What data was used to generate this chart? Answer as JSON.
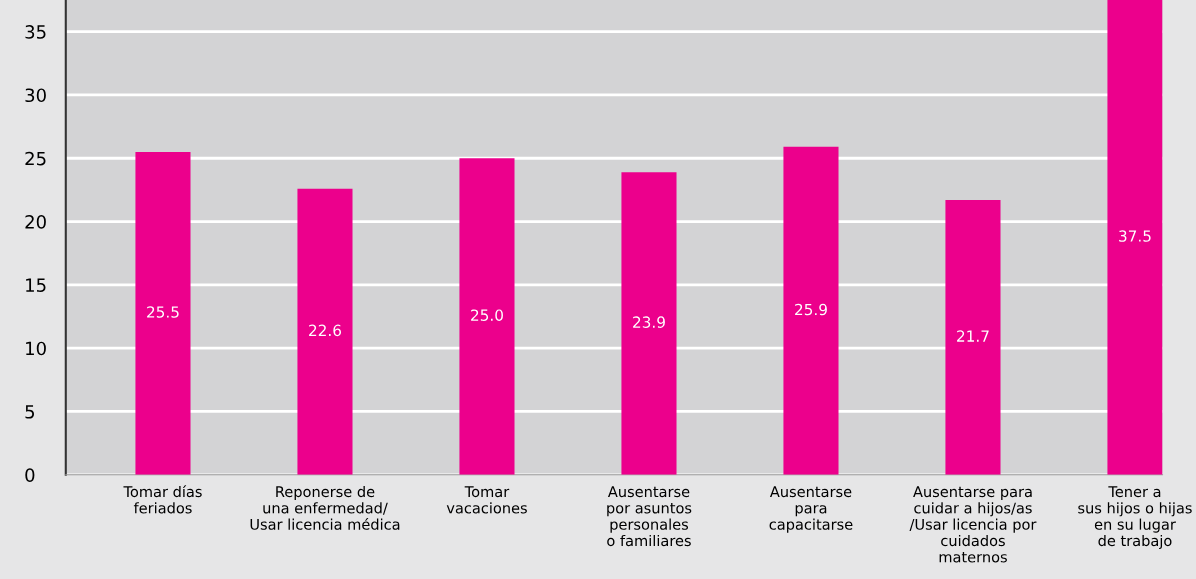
{
  "chart_data": {
    "type": "bar",
    "categories": [
      "Tomar días\nferiados",
      "Reponerse de\nuna enfermedad/\nUsar licencia médica",
      "Tomar\nvacaciones",
      "Ausentarse\npor asuntos\npersonales\no familiares",
      "Ausentarse\npara\ncapacitarse",
      "Ausentarse para\ncuidar a hijos/as\n/Usar licencia por\ncuidados\nmaternos",
      "Tener a\nsus hijos o hijas\nen su lugar\nde trabajo"
    ],
    "values": [
      25.5,
      22.6,
      25.0,
      23.9,
      25.9,
      21.7,
      37.5
    ],
    "value_labels": [
      "25.5",
      "22.6",
      "25.0",
      "23.9",
      "25.9",
      "21.7",
      "37.5"
    ],
    "color": "#ec008c",
    "ylim": [
      0,
      37.5
    ],
    "yticks": [
      0,
      5,
      10,
      15,
      20,
      25,
      30,
      35
    ],
    "grid": "y"
  }
}
